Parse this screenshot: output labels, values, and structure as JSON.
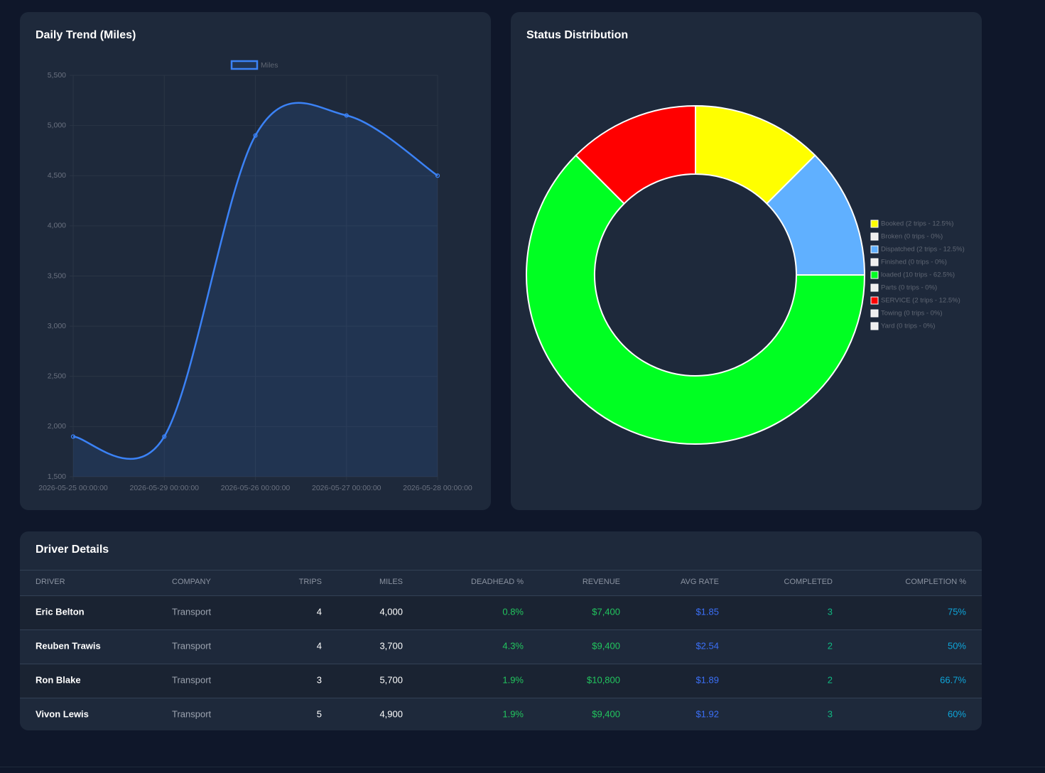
{
  "chart_data": [
    {
      "type": "line",
      "title": "Daily Trend (Miles)",
      "categories": [
        "2026-05-25 00:00:00",
        "2026-05-29 00:00:00",
        "2026-05-26 00:00:00",
        "2026-05-27 00:00:00",
        "2026-05-28 00:00:00"
      ],
      "series": [
        {
          "name": "Miles",
          "color": "#3b82f6",
          "values": [
            1900,
            1900,
            4900,
            5100,
            4500
          ]
        }
      ],
      "ylim": [
        1500,
        5500
      ],
      "yticks": [
        {
          "value": 1500,
          "label": "1,500"
        },
        {
          "value": 2000,
          "label": "2,000"
        },
        {
          "value": 2500,
          "label": "2,500"
        },
        {
          "value": 3000,
          "label": "3,000"
        },
        {
          "value": 3500,
          "label": "3,500"
        },
        {
          "value": 4000,
          "label": "4,000"
        },
        {
          "value": 4500,
          "label": "4,500"
        },
        {
          "value": 5000,
          "label": "5,000"
        },
        {
          "value": 5500,
          "label": "5,500"
        }
      ],
      "grid": true,
      "legend": "top"
    },
    {
      "type": "doughnut",
      "title": "Status Distribution",
      "categories": [
        "Booked (2 trips - 12.5%)",
        "Broken (0 trips - 0%)",
        "Dispatched (2 trips - 12.5%)",
        "Finished (0 trips - 0%)",
        "loaded (10 trips - 62.5%)",
        "Parts (0 trips - 0%)",
        "SERVICE (2 trips - 12.5%)",
        "Towing (0 trips - 0%)",
        "Yard (0 trips - 0%)"
      ],
      "values": [
        2,
        0,
        2,
        0,
        10,
        0,
        2,
        0,
        0
      ],
      "colors": [
        "#ffff00",
        "#eeeeee",
        "#60b0ff",
        "#eeeeee",
        "#00ff22",
        "#eeeeee",
        "#ff0000",
        "#eeeeee",
        "#eeeeee"
      ],
      "legend": "right"
    }
  ],
  "table": {
    "title": "Driver Details",
    "columns": [
      "DRIVER",
      "COMPANY",
      "TRIPS",
      "MILES",
      "DEADHEAD %",
      "REVENUE",
      "AVG RATE",
      "COMPLETED",
      "COMPLETION %"
    ],
    "rows": [
      [
        "Eric Belton",
        "Transport",
        "4",
        "4,000",
        "0.8%",
        "$7,400",
        "$1.85",
        "3",
        "75%"
      ],
      [
        "Reuben Trawis",
        "Transport",
        "4",
        "3,700",
        "4.3%",
        "$9,400",
        "$2.54",
        "2",
        "50%"
      ],
      [
        "Ron Blake",
        "Transport",
        "3",
        "5,700",
        "1.9%",
        "$10,800",
        "$1.89",
        "2",
        "66.7%"
      ],
      [
        "Vivon Lewis",
        "Transport",
        "5",
        "4,900",
        "1.9%",
        "$9,400",
        "$1.92",
        "3",
        "60%"
      ]
    ]
  }
}
